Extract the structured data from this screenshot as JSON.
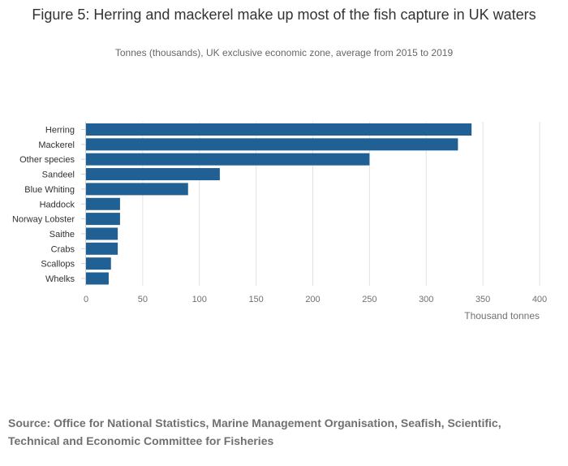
{
  "chart_data": {
    "type": "bar",
    "orientation": "horizontal",
    "title": "Figure 5: Herring and mackerel make up most of the fish capture in UK waters",
    "subtitle": "Tonnes (thousands), UK exclusive economic zone, average from 2015 to 2019",
    "xlabel": "Thousand tonnes",
    "ylabel": "",
    "categories": [
      "Herring",
      "Mackerel",
      "Other species",
      "Sandeel",
      "Blue Whiting",
      "Haddock",
      "Norway Lobster",
      "Saithe",
      "Crabs",
      "Scallops",
      "Whelks"
    ],
    "values": [
      340,
      328,
      250,
      118,
      90,
      30,
      30,
      28,
      28,
      22,
      20
    ],
    "xlim": [
      0,
      400
    ],
    "xticks": [
      "0",
      "50",
      "100",
      "150",
      "200",
      "250",
      "300",
      "350",
      "400"
    ],
    "grid": true,
    "legend": "none",
    "bar_color": "#206095",
    "source": "Source: Office for National Statistics, Marine Management Organisation, Seafish, Scientific, Technical and Economic Committee for Fisheries"
  }
}
